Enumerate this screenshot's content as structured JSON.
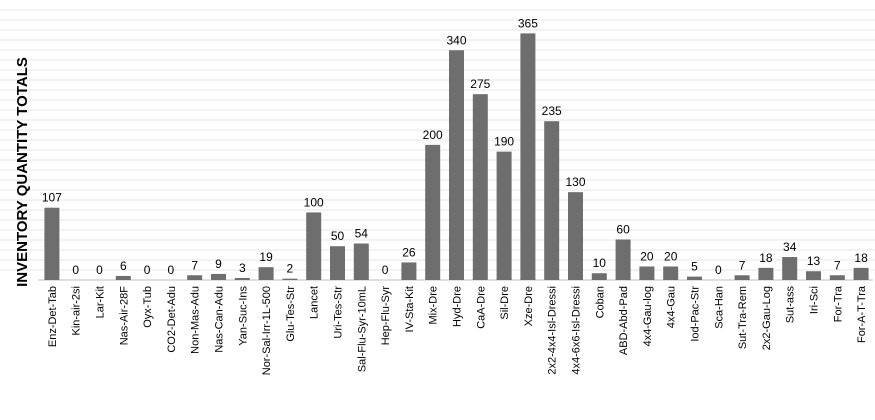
{
  "chart_data": {
    "type": "bar",
    "title": "",
    "xlabel": "",
    "ylabel": "INVENTORY QUANTITY TOTALS",
    "ylim": [
      0,
      370
    ],
    "grid": true,
    "legend": "none",
    "bar_color": "#6e6e6e",
    "grid_color": "#e6e6e6",
    "categories": [
      "Enz-Det-Tab",
      "Kin-air-2si",
      "Lar-Kit",
      "Nas-Air-28F",
      "Oyx-Tub",
      "CO2-Det-Adu",
      "Non-Mas-Adu",
      "Nas-Can-Adu",
      "Yan-Suc-Ins",
      "Nor-Sal-Irr-1L-500",
      "Glu-Tes-Str",
      "Lancet",
      "Uri-Tes-Str",
      "Sal-Flu-Syr-10mL",
      "Hep-Flu-Syr",
      "IV-Sta-Kit",
      "Mix-Dre",
      "Hyd-Dre",
      "CaA-Dre",
      "Sil-Dre",
      "Xze-Dre",
      "2x2-4x4-Isl-Dressi",
      "4x4-6x6-Isl-Dressi",
      "Coban",
      "ABD-Abd-Pad",
      "4x4-Gau-log",
      "4x4-Gau",
      "Iod-Pac-Str",
      "Sca-Han",
      "Sut-Tra-Rem",
      "2x2-Gau-Log",
      "Sut-ass",
      "Iri-Sci",
      "For-Tra",
      "For-A-T-Tra"
    ],
    "values": [
      107,
      0,
      0,
      6,
      0,
      0,
      7,
      9,
      3,
      19,
      2,
      100,
      50,
      54,
      0,
      26,
      200,
      340,
      275,
      190,
      365,
      235,
      130,
      10,
      60,
      20,
      20,
      5,
      0,
      7,
      18,
      34,
      13,
      7,
      18
    ]
  }
}
